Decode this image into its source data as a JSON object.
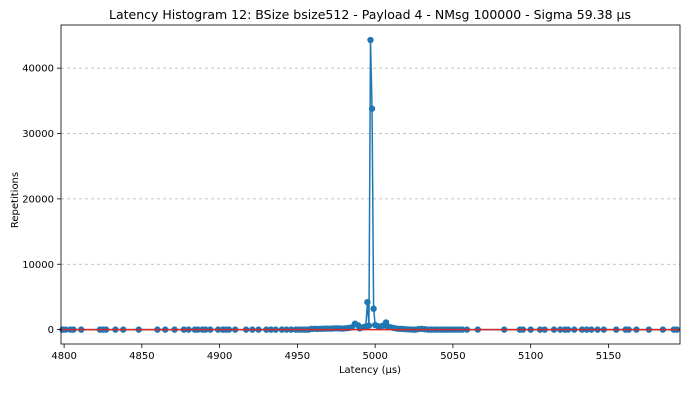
{
  "chart_data": {
    "type": "line",
    "title": "Latency Histogram 12: BSize bsize512 - Payload 4 - NMsg 100000 - Sigma 59.38 µs",
    "xlabel": "Latency (µs)",
    "ylabel": "Repetitions",
    "xlim": [
      4798,
      5196
    ],
    "ylim": [
      -2200,
      46600
    ],
    "x_ticks": [
      4800,
      4850,
      4900,
      4950,
      5000,
      5050,
      5100,
      5150
    ],
    "y_ticks": [
      0,
      10000,
      20000,
      30000,
      40000
    ],
    "grid": "y-dashed",
    "baseline": 0,
    "colors": {
      "series": "#1f77b4",
      "baseline": "#d62728",
      "grid": "#b0b0b0"
    },
    "series": [
      {
        "marker": "circle",
        "points": [
          [
            4799,
            0
          ],
          [
            4801,
            0
          ],
          [
            4804,
            0
          ],
          [
            4806,
            0
          ],
          [
            4811,
            0
          ],
          [
            4823,
            0
          ],
          [
            4825,
            0
          ],
          [
            4827,
            0
          ],
          [
            4833,
            0
          ],
          [
            4838,
            0
          ],
          [
            4848,
            0
          ],
          [
            4860,
            0
          ],
          [
            4865,
            0
          ],
          [
            4871,
            0
          ],
          [
            4877,
            0
          ],
          [
            4880,
            0
          ],
          [
            4884,
            0
          ],
          [
            4886,
            0
          ],
          [
            4889,
            0
          ],
          [
            4891,
            0
          ],
          [
            4894,
            0
          ],
          [
            4899,
            0
          ],
          [
            4902,
            0
          ],
          [
            4904,
            0
          ],
          [
            4906,
            0
          ],
          [
            4910,
            0
          ],
          [
            4917,
            0
          ],
          [
            4921,
            0
          ],
          [
            4925,
            0
          ],
          [
            4930,
            0
          ],
          [
            4933,
            0
          ],
          [
            4936,
            0
          ],
          [
            4940,
            0
          ],
          [
            4943,
            0
          ],
          [
            4946,
            0
          ],
          [
            4949,
            0
          ],
          [
            4951,
            0
          ],
          [
            4953,
            0
          ],
          [
            4955,
            0
          ],
          [
            4957,
            0
          ],
          [
            4959,
            100
          ],
          [
            4961,
            120
          ],
          [
            4963,
            110
          ],
          [
            4965,
            130
          ],
          [
            4967,
            140
          ],
          [
            4969,
            160
          ],
          [
            4971,
            150
          ],
          [
            4973,
            170
          ],
          [
            4975,
            200
          ],
          [
            4977,
            180
          ],
          [
            4979,
            160
          ],
          [
            4981,
            200
          ],
          [
            4983,
            250
          ],
          [
            4985,
            350
          ],
          [
            4987,
            900
          ],
          [
            4989,
            650
          ],
          [
            4990,
            200
          ],
          [
            4992,
            350
          ],
          [
            4994,
            500
          ],
          [
            4995,
            4200
          ],
          [
            4996,
            600
          ],
          [
            4997,
            44300
          ],
          [
            4998,
            33800
          ],
          [
            4999,
            3200
          ],
          [
            5000,
            700
          ],
          [
            5002,
            500
          ],
          [
            5003,
            450
          ],
          [
            5005,
            600
          ],
          [
            5007,
            1100
          ],
          [
            5008,
            500
          ],
          [
            5010,
            350
          ],
          [
            5012,
            250
          ],
          [
            5014,
            150
          ],
          [
            5016,
            120
          ],
          [
            5018,
            100
          ],
          [
            5020,
            50
          ],
          [
            5022,
            30
          ],
          [
            5024,
            0
          ],
          [
            5026,
            0
          ],
          [
            5028,
            80
          ],
          [
            5030,
            120
          ],
          [
            5032,
            60
          ],
          [
            5034,
            0
          ],
          [
            5036,
            0
          ],
          [
            5038,
            0
          ],
          [
            5040,
            0
          ],
          [
            5042,
            0
          ],
          [
            5044,
            0
          ],
          [
            5046,
            0
          ],
          [
            5048,
            0
          ],
          [
            5050,
            0
          ],
          [
            5052,
            0
          ],
          [
            5054,
            0
          ],
          [
            5056,
            0
          ],
          [
            5059,
            0
          ],
          [
            5066,
            0
          ],
          [
            5083,
            0
          ],
          [
            5093,
            0
          ],
          [
            5095,
            0
          ],
          [
            5100,
            0
          ],
          [
            5106,
            0
          ],
          [
            5109,
            0
          ],
          [
            5115,
            0
          ],
          [
            5119,
            0
          ],
          [
            5122,
            0
          ],
          [
            5124,
            0
          ],
          [
            5128,
            0
          ],
          [
            5133,
            0
          ],
          [
            5136,
            0
          ],
          [
            5139,
            0
          ],
          [
            5143,
            0
          ],
          [
            5147,
            0
          ],
          [
            5155,
            0
          ],
          [
            5161,
            0
          ],
          [
            5163,
            0
          ],
          [
            5168,
            0
          ],
          [
            5176,
            0
          ],
          [
            5185,
            0
          ],
          [
            5192,
            0
          ],
          [
            5194,
            0
          ]
        ]
      }
    ]
  }
}
